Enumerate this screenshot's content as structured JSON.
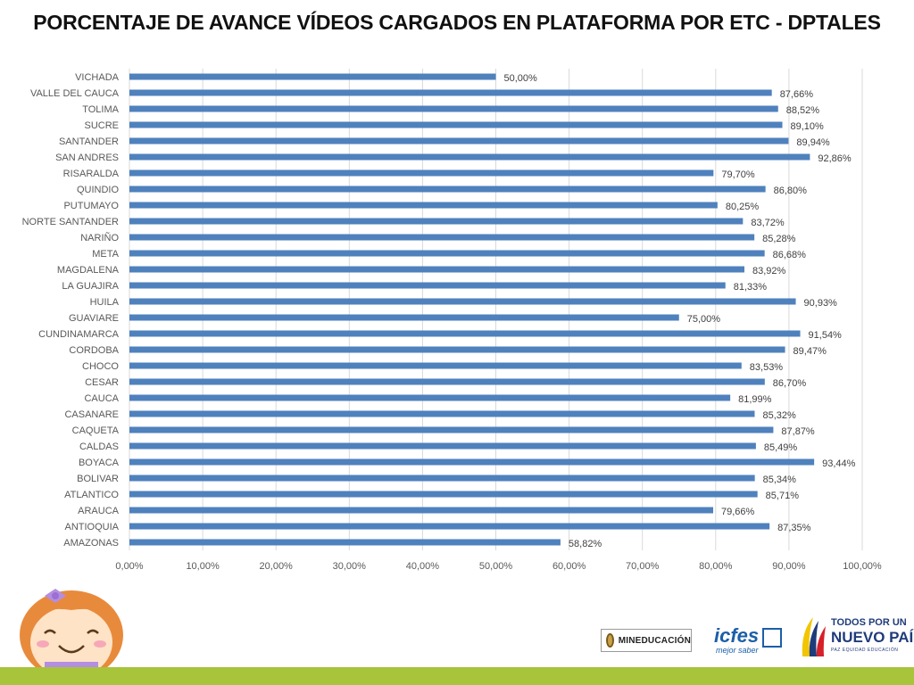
{
  "title": "PORCENTAJE DE AVANCE VÍDEOS CARGADOS EN PLATAFORMA POR ETC - DPTALES",
  "chart_data": {
    "type": "bar",
    "orientation": "horizontal",
    "categories": [
      "VICHADA",
      "VALLE DEL CAUCA",
      "TOLIMA",
      "SUCRE",
      "SANTANDER",
      "SAN ANDRES",
      "RISARALDA",
      "QUINDIO",
      "PUTUMAYO",
      "NORTE SANTANDER",
      "NARIÑO",
      "META",
      "MAGDALENA",
      "LA GUAJIRA",
      "HUILA",
      "GUAVIARE",
      "CUNDINAMARCA",
      "CORDOBA",
      "CHOCO",
      "CESAR",
      "CAUCA",
      "CASANARE",
      "CAQUETA",
      "CALDAS",
      "BOYACA",
      "BOLIVAR",
      "ATLANTICO",
      "ARAUCA",
      "ANTIOQUIA",
      "AMAZONAS"
    ],
    "values": [
      50.0,
      87.66,
      88.52,
      89.1,
      89.94,
      92.86,
      79.7,
      86.8,
      80.25,
      83.72,
      85.28,
      86.68,
      83.92,
      81.33,
      90.93,
      75.0,
      91.54,
      89.47,
      83.53,
      86.7,
      81.99,
      85.32,
      87.87,
      85.49,
      93.44,
      85.34,
      85.71,
      79.66,
      87.35,
      58.82
    ],
    "labels": [
      "50,00%",
      "87,66%",
      "88,52%",
      "89,10%",
      "89,94%",
      "92,86%",
      "79,70%",
      "86,80%",
      "80,25%",
      "83,72%",
      "85,28%",
      "86,68%",
      "83,92%",
      "81,33%",
      "90,93%",
      "75,00%",
      "91,54%",
      "89,47%",
      "83,53%",
      "86,70%",
      "81,99%",
      "85,32%",
      "87,87%",
      "85,49%",
      "93,44%",
      "85,34%",
      "85,71%",
      "79,66%",
      "87,35%",
      "58,82%"
    ],
    "xlim": [
      0,
      100
    ],
    "xticks": [
      "0,00%",
      "10,00%",
      "20,00%",
      "30,00%",
      "40,00%",
      "50,00%",
      "60,00%",
      "70,00%",
      "80,00%",
      "90,00%",
      "100,00%"
    ],
    "grid": true,
    "legend": "none",
    "bar_color": "#4f81bd"
  },
  "footer": {
    "mineducacion": "MINEDUCACIÓN",
    "icfes_main": "icfes",
    "icfes_sub": "mejor saber",
    "todos_line1": "TODOS POR UN",
    "todos_line2": "NUEVO PAÍS",
    "todos_line3": "PAZ  EQUIDAD  EDUCACIÓN",
    "bar_color": "#a7c43a"
  }
}
